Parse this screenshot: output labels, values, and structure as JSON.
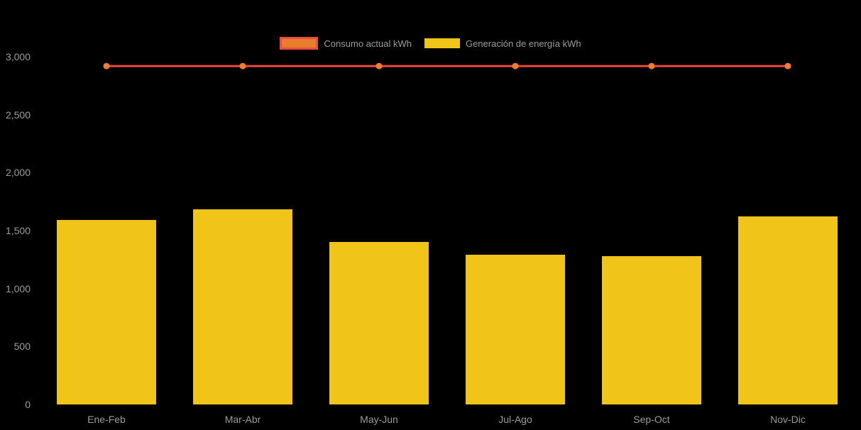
{
  "page": {
    "background": "#000000",
    "text_color": "#9c9c9c"
  },
  "legend": {
    "position": "top-center",
    "items": [
      {
        "label": "Consumo actual kWh",
        "series_type": "line",
        "swatch_fill": "#e87d2b",
        "swatch_border": "#e84d3e"
      },
      {
        "label": "Generación de energía kWh",
        "series_type": "bar",
        "swatch_fill": "#f0c419",
        "swatch_border": "#f0c419"
      }
    ]
  },
  "chart_data": {
    "type": "bar",
    "title": "",
    "xlabel": "",
    "ylabel": "",
    "categories": [
      "Ene-Feb",
      "Mar-Abr",
      "May-Jun",
      "Jul-Ago",
      "Sep-Oct",
      "Nov-Dic"
    ],
    "series": [
      {
        "name": "Consumo actual kWh",
        "type": "line",
        "line_color": "#e84d3e",
        "point_color": "#ed7d31",
        "values": [
          2920,
          2920,
          2920,
          2920,
          2920,
          2920
        ]
      },
      {
        "name": "Generación de energía kWh",
        "type": "bar",
        "color": "#f0c419",
        "values": [
          1590,
          1685,
          1400,
          1290,
          1280,
          1620
        ]
      }
    ],
    "ylim": [
      0,
      3000
    ],
    "yticks": [
      0,
      500,
      1000,
      1500,
      2000,
      2500,
      3000
    ],
    "ytick_labels": [
      "0",
      "500",
      "1,000",
      "1,500",
      "2,000",
      "2,500",
      "3,000"
    ],
    "grid": false,
    "legend_position": "top"
  }
}
